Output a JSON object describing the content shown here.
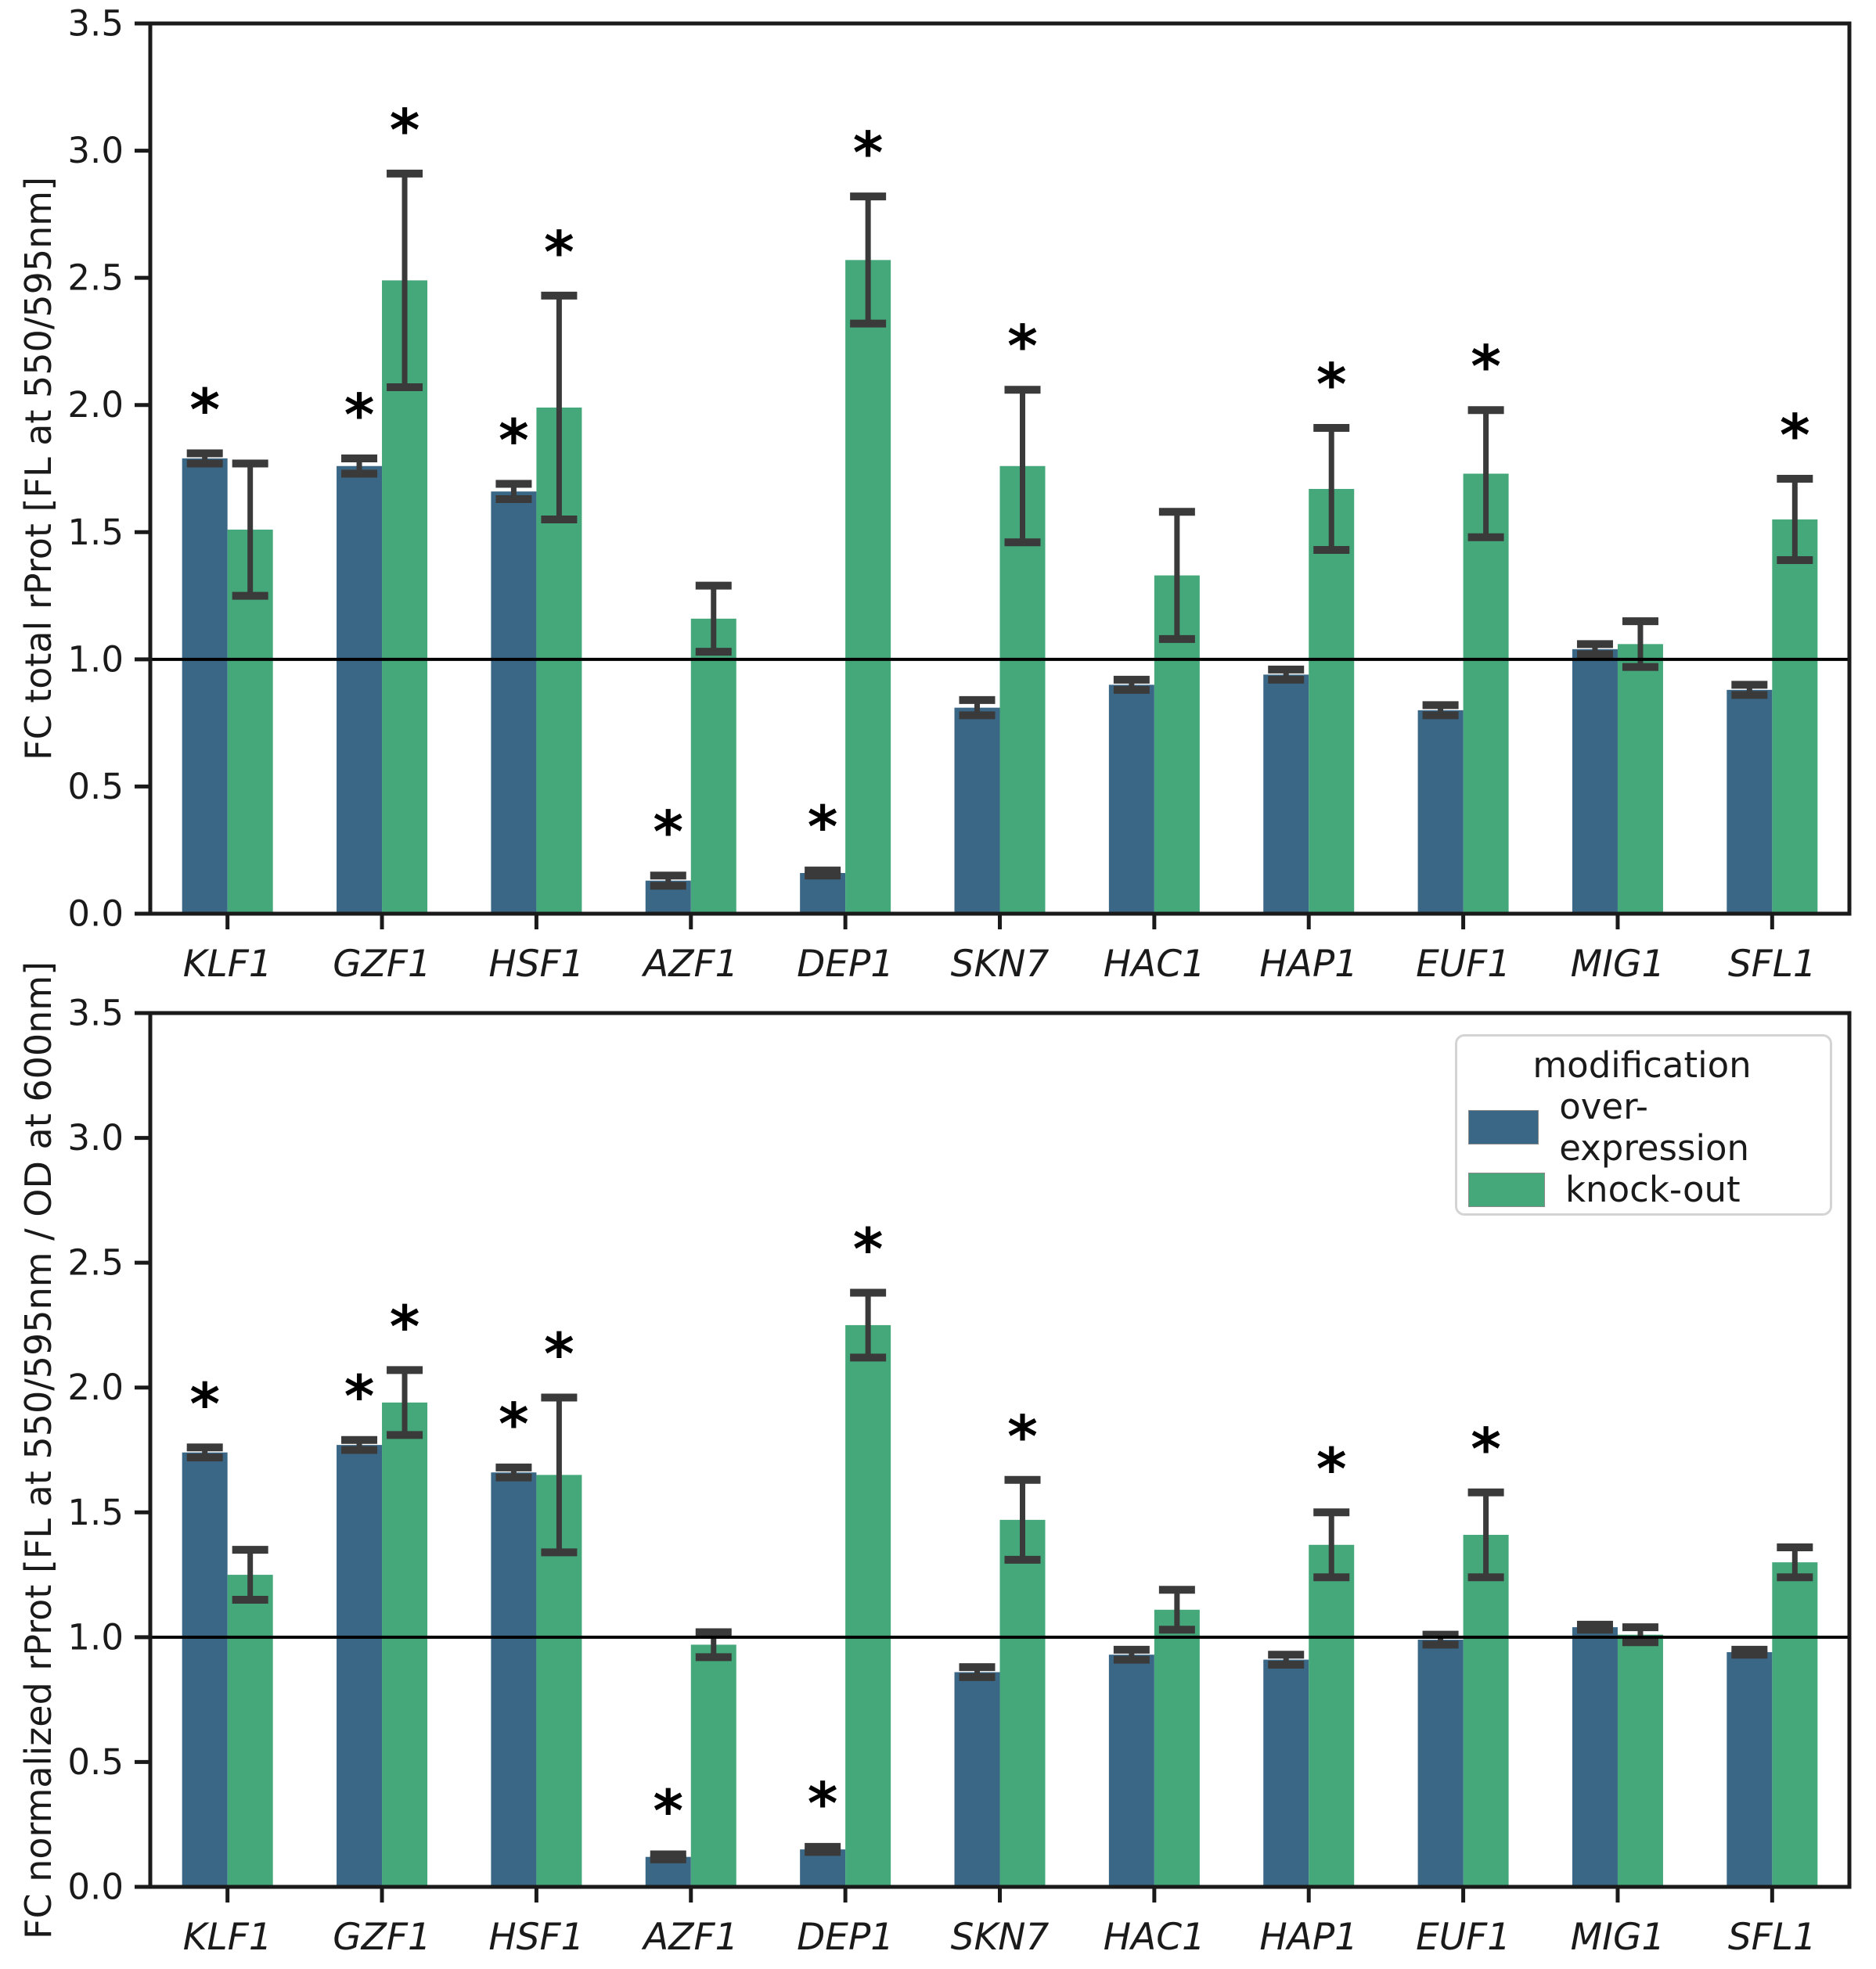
{
  "figure": {
    "background": "#ffffff",
    "error_bar_color": "#3a3a3a",
    "reference_line_color": "#000000",
    "axis_color": "#1a1a1a",
    "significance_marker": "*"
  },
  "legend": {
    "title": "modification",
    "entries": [
      {
        "label": "over-expression",
        "color": "#3B6787"
      },
      {
        "label": "knock-out",
        "color": "#44A87B"
      }
    ]
  },
  "chart_data": [
    {
      "type": "bar",
      "panel": "top",
      "title": "",
      "xlabel": "",
      "ylabel": "FC total rProt [FL at 550/595nm]",
      "ylim": [
        0.0,
        3.5
      ],
      "yticks": [
        "0.0",
        "0.5",
        "1.0",
        "1.5",
        "2.0",
        "2.5",
        "3.0",
        "3.5"
      ],
      "reference_line": 1.0,
      "grid": false,
      "legend_position": "none",
      "categories": [
        "KLF1",
        "GZF1",
        "HSF1",
        "AZF1",
        "DEP1",
        "SKN7",
        "HAC1",
        "HAP1",
        "EUF1",
        "MIG1",
        "SFL1"
      ],
      "series": [
        {
          "name": "over-expression",
          "color": "#3B6787",
          "values": [
            1.79,
            1.76,
            1.66,
            0.13,
            0.16,
            0.81,
            0.9,
            0.94,
            0.8,
            1.04,
            0.88
          ],
          "err": [
            0.02,
            0.03,
            0.03,
            0.02,
            0.01,
            0.03,
            0.02,
            0.02,
            0.02,
            0.02,
            0.02
          ],
          "significant": [
            true,
            true,
            true,
            true,
            true,
            false,
            false,
            false,
            false,
            false,
            false
          ]
        },
        {
          "name": "knock-out",
          "color": "#44A87B",
          "values": [
            1.51,
            2.49,
            1.99,
            1.16,
            2.57,
            1.76,
            1.33,
            1.67,
            1.73,
            1.06,
            1.55
          ],
          "err": [
            0.26,
            0.42,
            0.44,
            0.13,
            0.25,
            0.3,
            0.25,
            0.24,
            0.25,
            0.09,
            0.16
          ],
          "significant": [
            false,
            true,
            true,
            false,
            true,
            true,
            false,
            true,
            true,
            false,
            true
          ]
        }
      ]
    },
    {
      "type": "bar",
      "panel": "bottom",
      "title": "",
      "xlabel": "",
      "ylabel": "FC normalized rProt [FL at 550/595nm / OD at 600nm]",
      "ylim": [
        0.0,
        3.5
      ],
      "yticks": [
        "0.0",
        "0.5",
        "1.0",
        "1.5",
        "2.0",
        "2.5",
        "3.0",
        "3.5"
      ],
      "reference_line": 1.0,
      "grid": false,
      "legend_position": "upper right",
      "categories": [
        "KLF1",
        "GZF1",
        "HSF1",
        "AZF1",
        "DEP1",
        "SKN7",
        "HAC1",
        "HAP1",
        "EUF1",
        "MIG1",
        "SFL1"
      ],
      "series": [
        {
          "name": "over-expression",
          "color": "#3B6787",
          "values": [
            1.74,
            1.77,
            1.66,
            0.12,
            0.15,
            0.86,
            0.93,
            0.91,
            0.99,
            1.04,
            0.94
          ],
          "err": [
            0.02,
            0.02,
            0.02,
            0.01,
            0.01,
            0.02,
            0.02,
            0.02,
            0.02,
            0.01,
            0.01
          ],
          "significant": [
            true,
            true,
            true,
            true,
            true,
            false,
            false,
            false,
            false,
            false,
            false
          ]
        },
        {
          "name": "knock-out",
          "color": "#44A87B",
          "values": [
            1.25,
            1.94,
            1.65,
            0.97,
            2.25,
            1.47,
            1.11,
            1.37,
            1.41,
            1.01,
            1.3
          ],
          "err": [
            0.1,
            0.13,
            0.31,
            0.05,
            0.13,
            0.16,
            0.08,
            0.13,
            0.17,
            0.03,
            0.06
          ],
          "significant": [
            false,
            true,
            true,
            false,
            true,
            true,
            false,
            true,
            true,
            false,
            false
          ]
        }
      ]
    }
  ]
}
